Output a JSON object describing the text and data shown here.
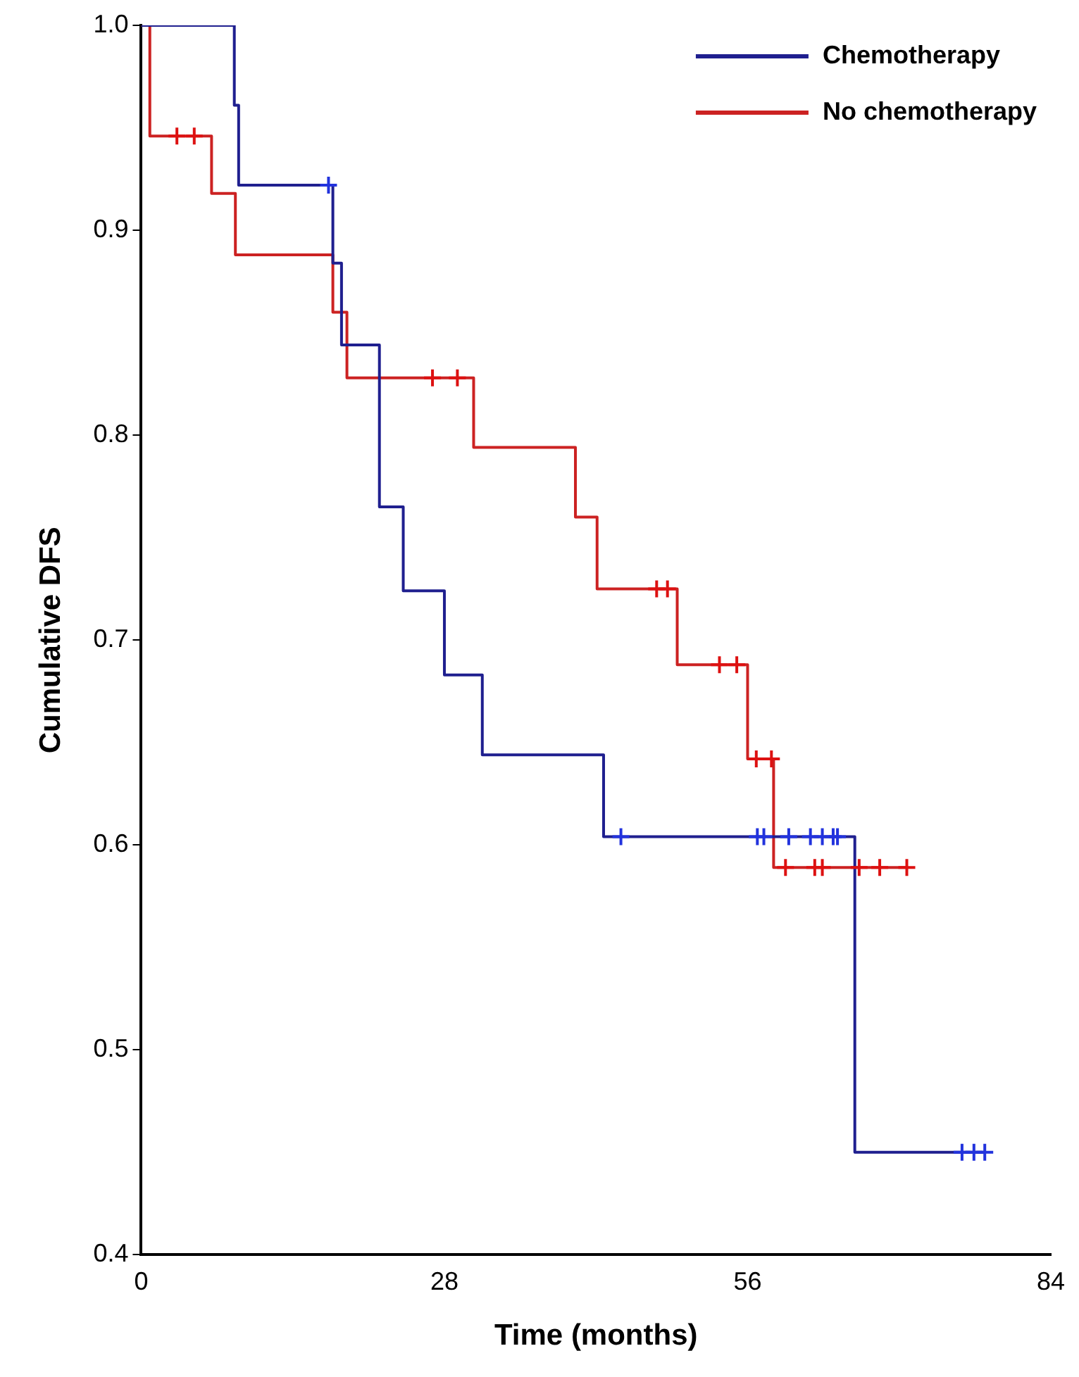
{
  "chart_data": {
    "type": "step",
    "xlabel": "Time (months)",
    "ylabel": "Cumulative DFS",
    "xlim": [
      0,
      84
    ],
    "xticks": [
      0,
      28,
      56,
      84
    ],
    "ylim": [
      0.4,
      1.0
    ],
    "yticks": [
      0.4,
      0.5,
      0.6,
      0.7,
      0.8,
      0.9,
      {
        "value": 1.0,
        "label": "1.0"
      }
    ],
    "grid": false,
    "legend": "top right",
    "line_style": "solid",
    "series": [
      {
        "name": "Chemotherapy",
        "color": "#1f1f8f",
        "x": [
          0,
          8.6,
          9.0,
          17.7,
          18.5,
          22.0,
          24.2,
          28.0,
          31.5,
          42.7,
          65.9,
          78.0
        ],
        "values": [
          1.0,
          0.961,
          0.922,
          0.884,
          0.844,
          0.765,
          0.724,
          0.683,
          0.644,
          0.604,
          0.45,
          0.45
        ]
      },
      {
        "name": "No chemotherapy",
        "color": "#cc2222",
        "x": [
          0,
          0.8,
          6.5,
          8.7,
          17.7,
          19.0,
          30.7,
          40.1,
          42.1,
          49.5,
          56.0,
          58.4,
          70.7
        ],
        "values": [
          1.0,
          0.946,
          0.918,
          0.888,
          0.86,
          0.828,
          0.794,
          0.76,
          0.725,
          0.688,
          0.642,
          0.589,
          0.589
        ]
      },
      {
        "type": "scatter",
        "marker": "cross",
        "color": "#2233dd",
        "x": [
          17.3,
          44.3,
          56.9,
          57.5,
          59.8,
          61.8,
          62.9,
          63.9,
          64.3,
          75.8,
          76.9,
          77.9
        ],
        "values": [
          0.922,
          0.604,
          0.604,
          0.604,
          0.604,
          0.604,
          0.604,
          0.604,
          0.604,
          0.45,
          0.45,
          0.45
        ]
      },
      {
        "type": "scatter",
        "marker": "cross",
        "color": "#dd1111",
        "x": [
          3.3,
          4.9,
          26.9,
          29.2,
          47.6,
          48.6,
          53.4,
          55.0,
          56.8,
          58.2,
          59.5,
          62.2,
          62.9,
          66.3,
          68.2,
          70.7
        ],
        "values": [
          0.946,
          0.946,
          0.828,
          0.828,
          0.725,
          0.725,
          0.688,
          0.688,
          0.642,
          0.642,
          0.589,
          0.589,
          0.589,
          0.589,
          0.589,
          0.589
        ]
      }
    ]
  }
}
